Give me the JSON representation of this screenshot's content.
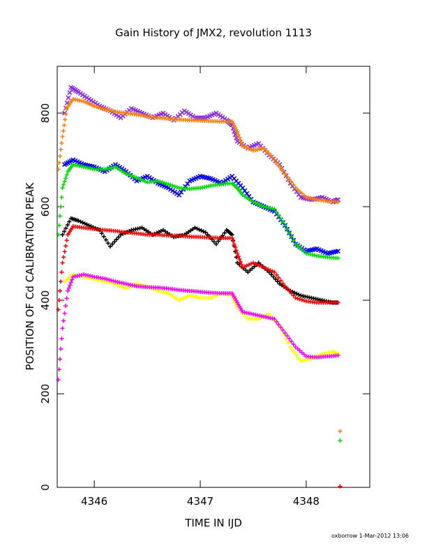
{
  "chart_data": {
    "type": "scatter",
    "title": "Gain History of JMX2, revolution 1113",
    "xlabel": "TIME IN IJD",
    "ylabel": "POSITION OF Cd CALIBRATION PEAK",
    "xlim": [
      4345.65,
      4348.6
    ],
    "ylim": [
      0,
      900
    ],
    "x_ticks": [
      4346,
      4347,
      4348
    ],
    "y_ticks": [
      0,
      200,
      400,
      600,
      800
    ],
    "grid": false,
    "footer": "oxborrow  1-Mar-2012 13:06",
    "series": [
      {
        "color": "#8a2be2",
        "marker": "x",
        "x": [
          4345.72,
          4345.78,
          4345.85,
          4345.95,
          4346.05,
          4346.15,
          4346.25,
          4346.35,
          4346.45,
          4346.55,
          4346.65,
          4346.75,
          4346.85,
          4346.95,
          4347.05,
          4347.15,
          4347.25,
          4347.3,
          4347.35,
          4347.45,
          4347.55,
          4347.65,
          4347.75,
          4347.85,
          4347.95,
          4348.05,
          4348.15,
          4348.25,
          4348.3
        ],
        "y": [
          800,
          855,
          845,
          830,
          815,
          805,
          790,
          810,
          800,
          790,
          800,
          785,
          805,
          790,
          790,
          800,
          785,
          775,
          740,
          725,
          735,
          710,
          690,
          650,
          620,
          615,
          620,
          610,
          615
        ]
      },
      {
        "color": "#ff7f00",
        "marker": "+",
        "x": [
          4345.66,
          4345.7,
          4345.74,
          4345.8,
          4345.9,
          4346.0,
          4346.1,
          4346.2,
          4346.3,
          4346.4,
          4346.5,
          4346.6,
          4346.7,
          4346.8,
          4346.9,
          4347.0,
          4347.1,
          4347.2,
          4347.3,
          4347.35,
          4347.4,
          4347.5,
          4347.6,
          4347.7,
          4347.8,
          4347.9,
          4348.0,
          4348.1,
          4348.2,
          4348.3
        ],
        "y": [
          680,
          750,
          810,
          830,
          825,
          815,
          808,
          803,
          800,
          797,
          793,
          790,
          788,
          786,
          785,
          784,
          783,
          782,
          782,
          760,
          730,
          720,
          725,
          700,
          670,
          640,
          620,
          615,
          612,
          610
        ]
      },
      {
        "color": "#0000ff",
        "marker": "x",
        "x": [
          4345.72,
          4345.8,
          4345.9,
          4346.0,
          4346.1,
          4346.2,
          4346.3,
          4346.4,
          4346.5,
          4346.6,
          4346.7,
          4346.8,
          4346.9,
          4347.0,
          4347.1,
          4347.2,
          4347.3,
          4347.4,
          4347.5,
          4347.6,
          4347.7,
          4347.8,
          4347.9,
          4348.0,
          4348.1,
          4348.2,
          4348.3
        ],
        "y": [
          690,
          700,
          690,
          685,
          675,
          690,
          675,
          655,
          665,
          650,
          640,
          625,
          655,
          665,
          660,
          650,
          665,
          640,
          610,
          600,
          590,
          560,
          520,
          505,
          510,
          500,
          505
        ]
      },
      {
        "color": "#00e000",
        "marker": "+",
        "x": [
          4345.66,
          4345.7,
          4345.75,
          4345.8,
          4345.9,
          4346.0,
          4346.1,
          4346.2,
          4346.3,
          4346.4,
          4346.5,
          4346.6,
          4346.7,
          4346.8,
          4346.9,
          4347.0,
          4347.1,
          4347.2,
          4347.3,
          4347.35,
          4347.4,
          4347.5,
          4347.6,
          4347.7,
          4347.8,
          4347.9,
          4348.0,
          4348.1,
          4348.2,
          4348.3
        ],
        "y": [
          540,
          640,
          675,
          690,
          685,
          680,
          680,
          685,
          670,
          662,
          652,
          655,
          648,
          640,
          638,
          640,
          645,
          648,
          650,
          640,
          625,
          610,
          600,
          595,
          560,
          520,
          500,
          495,
          492,
          490
        ]
      },
      {
        "color": "#000000",
        "marker": "+",
        "x": [
          4345.7,
          4345.78,
          4345.85,
          4345.95,
          4346.05,
          4346.15,
          4346.25,
          4346.35,
          4346.45,
          4346.55,
          4346.65,
          4346.75,
          4346.85,
          4346.95,
          4347.05,
          4347.15,
          4347.25,
          4347.3,
          4347.35,
          4347.45,
          4347.55,
          4347.65,
          4347.75,
          4347.85,
          4347.95,
          4348.05,
          4348.15,
          4348.25,
          4348.3
        ],
        "y": [
          540,
          575,
          570,
          560,
          550,
          515,
          540,
          550,
          555,
          540,
          550,
          535,
          540,
          555,
          545,
          520,
          550,
          540,
          480,
          460,
          480,
          460,
          435,
          420,
          410,
          405,
          400,
          395,
          395
        ]
      },
      {
        "color": "#ff0000",
        "marker": "+",
        "x": [
          4345.66,
          4345.7,
          4345.75,
          4345.8,
          4345.9,
          4346.0,
          4346.1,
          4346.2,
          4346.3,
          4346.4,
          4346.5,
          4346.6,
          4346.7,
          4346.8,
          4346.9,
          4347.0,
          4347.1,
          4347.2,
          4347.3,
          4347.35,
          4347.4,
          4347.5,
          4347.6,
          4347.7,
          4347.8,
          4347.9,
          4348.0,
          4348.1,
          4348.2,
          4348.3
        ],
        "y": [
          380,
          480,
          540,
          558,
          555,
          552,
          550,
          548,
          545,
          543,
          540,
          540,
          538,
          538,
          536,
          535,
          534,
          533,
          533,
          500,
          470,
          480,
          470,
          460,
          430,
          405,
          398,
          395,
          395,
          395
        ]
      },
      {
        "color": "#ffff00",
        "marker": "+",
        "x": [
          4345.72,
          4345.8,
          4345.9,
          4346.0,
          4346.1,
          4346.2,
          4346.3,
          4346.4,
          4346.5,
          4346.6,
          4346.7,
          4346.8,
          4346.9,
          4347.0,
          4347.1,
          4347.2,
          4347.3,
          4347.35,
          4347.45,
          4347.55,
          4347.65,
          4347.75,
          4347.85,
          4347.95,
          4348.05,
          4348.15,
          4348.25,
          4348.3
        ],
        "y": [
          440,
          455,
          450,
          445,
          440,
          435,
          425,
          435,
          430,
          420,
          415,
          400,
          410,
          405,
          405,
          415,
          410,
          385,
          360,
          360,
          370,
          345,
          300,
          270,
          275,
          285,
          290,
          285
        ]
      },
      {
        "color": "#ff00ff",
        "marker": "+",
        "x": [
          4345.66,
          4345.7,
          4345.75,
          4345.8,
          4345.9,
          4346.0,
          4346.1,
          4346.2,
          4346.3,
          4346.4,
          4346.5,
          4346.6,
          4346.7,
          4346.8,
          4346.9,
          4347.0,
          4347.1,
          4347.2,
          4347.3,
          4347.35,
          4347.4,
          4347.5,
          4347.6,
          4347.7,
          4347.8,
          4347.9,
          4348.0,
          4348.1,
          4348.2,
          4348.3
        ],
        "y": [
          230,
          340,
          420,
          450,
          455,
          450,
          446,
          440,
          435,
          430,
          428,
          427,
          425,
          422,
          420,
          418,
          416,
          415,
          415,
          395,
          375,
          370,
          365,
          360,
          330,
          300,
          280,
          278,
          280,
          282
        ]
      },
      {
        "color": "#ff7f00",
        "marker": "+",
        "x": [
          4348.32
        ],
        "y": [
          120
        ]
      },
      {
        "color": "#00e000",
        "marker": "+",
        "x": [
          4348.32
        ],
        "y": [
          100
        ]
      },
      {
        "color": "#ff0000",
        "marker": "+",
        "x": [
          4348.32
        ],
        "y": [
          2
        ]
      }
    ]
  }
}
